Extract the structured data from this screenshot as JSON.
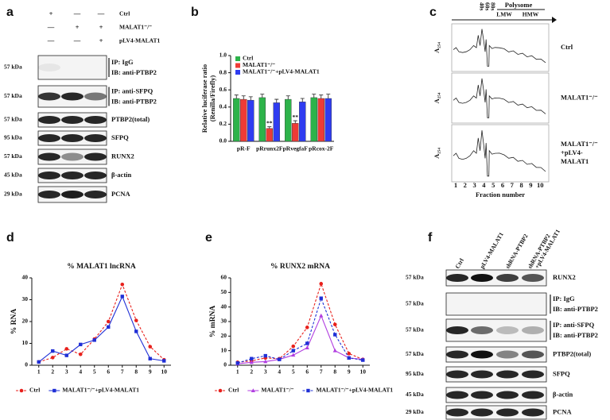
{
  "panel_a": {
    "label": "a",
    "conditions": {
      "names": [
        "Ctrl",
        "MALAT1⁻/⁻",
        "pLV4-MALAT1"
      ],
      "signs": [
        [
          "+",
          "—",
          "—"
        ],
        [
          "—",
          "+",
          "+"
        ],
        [
          "—",
          "—",
          "+"
        ]
      ]
    },
    "blots": [
      {
        "kda": "57 kDa",
        "lines": [
          "IP: IgG",
          "IB: anti-PTBP2"
        ]
      },
      {
        "kda": "57 kDa",
        "lines": [
          "IP: anti-SFPQ",
          "IB: anti-PTBP2"
        ]
      },
      {
        "kda": "57 kDa",
        "lines": [
          "PTBP2(total)"
        ]
      },
      {
        "kda": "95 kDa",
        "lines": [
          "SFPQ"
        ]
      },
      {
        "kda": "57 kDa",
        "lines": [
          "RUNX2"
        ]
      },
      {
        "kda": "45 kDa",
        "lines": [
          "β-actin"
        ]
      },
      {
        "kda": "29 kDa",
        "lines": [
          "PCNA"
        ]
      }
    ]
  },
  "panel_c": {
    "label": "c",
    "header": "Polysome",
    "lmw": "LMW",
    "hmw": "HMW",
    "peaks": [
      "40s",
      "60s",
      "80s"
    ],
    "ylabel": "A₂₅₄",
    "conditions": [
      [
        "Ctrl"
      ],
      [
        "MALAT1⁻/⁻"
      ],
      [
        "MALAT1⁻/⁻",
        "+pLV4-",
        "MALAT1"
      ]
    ],
    "xticks": [
      1,
      2,
      3,
      4,
      5,
      6,
      7,
      8,
      9,
      10
    ],
    "xlabel": "Fraction number"
  },
  "panel_f": {
    "label": "f",
    "columns": [
      [
        "Ctrl"
      ],
      [
        "pLV4-MALAT1"
      ],
      [
        "shRNA-PTBP2"
      ],
      [
        "shRNA-PTBP2",
        "+pLV4-MALAT1"
      ]
    ],
    "blots": [
      {
        "kda": "57 kDa",
        "lines": [
          "RUNX2"
        ]
      },
      {
        "kda": "57 kDa",
        "lines": [
          "IP: IgG",
          "IB: anti-PTBP2"
        ]
      },
      {
        "kda": "57 kDa",
        "lines": [
          "IP: anti-SFPQ",
          "IB: anti-PTBP2"
        ]
      },
      {
        "kda": "57 kDa",
        "lines": [
          "PTBP2(total)"
        ]
      },
      {
        "kda": "95 kDa",
        "lines": [
          "SFPQ"
        ]
      },
      {
        "kda": "45 kDa",
        "lines": [
          "β-actin"
        ]
      },
      {
        "kda": "29 kDa",
        "lines": [
          "PCNA"
        ]
      }
    ]
  },
  "chart_data": [
    {
      "type": "bar",
      "panel": "b",
      "ylabel": [
        "Relative luciferase ratio",
        "(Renilla/Firefly)"
      ],
      "categories": [
        "pR-F",
        "pRrunx2F",
        "pRvegfaF",
        "pRcox-2F"
      ],
      "series": [
        {
          "name": "Ctrl",
          "color": "#2db34a",
          "values": [
            0.5,
            0.51,
            0.49,
            0.51
          ],
          "errors": [
            0.04,
            0.04,
            0.04,
            0.04
          ]
        },
        {
          "name": "MALAT1⁻/⁻",
          "color": "#ee3b36",
          "values": [
            0.49,
            0.15,
            0.21,
            0.5
          ],
          "errors": [
            0.04,
            0.02,
            0.03,
            0.04
          ],
          "significance": [
            null,
            "**",
            "**",
            null
          ]
        },
        {
          "name": "MALAT1⁻/⁻+pLV4-MALAT1",
          "color": "#2f3cf0",
          "values": [
            0.48,
            0.45,
            0.46,
            0.5
          ],
          "errors": [
            0.04,
            0.04,
            0.04,
            0.05
          ]
        }
      ],
      "ylim": [
        0,
        1.0
      ],
      "yticks": [
        {
          "value": 0,
          "label": "0.0"
        },
        0.2,
        0.4,
        0.6,
        0.8,
        {
          "value": 1.0,
          "label": "1.0"
        }
      ],
      "legend": "top-left"
    },
    {
      "type": "line",
      "panel": "d",
      "title": "% MALAT1 lncRNA",
      "ylabel": "% RNA",
      "x": [
        1,
        2,
        3,
        4,
        5,
        6,
        7,
        8,
        9,
        10
      ],
      "xlim": [
        0.5,
        10.5
      ],
      "xticks": [
        1,
        2,
        3,
        4,
        5,
        6,
        7,
        8,
        9,
        10
      ],
      "ylim": [
        0,
        40
      ],
      "yticks": [
        0,
        10,
        20,
        30,
        40
      ],
      "legend": "bottom",
      "series": [
        {
          "name": "Ctrl",
          "color": "#e8201c",
          "dash": true,
          "marker": "circle",
          "values": [
            1.5,
            3.5,
            7.5,
            5,
            12,
            20,
            37,
            20.5,
            8.5,
            2.5
          ]
        },
        {
          "name": "MALAT1⁻/⁻+pLV4-MALAT1",
          "color": "#1f2fd6",
          "dash": false,
          "marker": "square",
          "values": [
            1.5,
            6.5,
            4.5,
            9.5,
            11.5,
            17.5,
            31.5,
            15.5,
            3,
            2
          ]
        }
      ]
    },
    {
      "type": "line",
      "panel": "e",
      "title": "% RUNX2 mRNA",
      "ylabel": "% mRNA",
      "x": [
        1,
        2,
        3,
        4,
        5,
        6,
        7,
        8,
        9,
        10
      ],
      "xlim": [
        0.5,
        10.5
      ],
      "xticks": [
        1,
        2,
        3,
        4,
        5,
        6,
        7,
        8,
        9,
        10
      ],
      "ylim": [
        0,
        60
      ],
      "yticks": [
        0,
        10,
        20,
        30,
        40,
        50,
        60
      ],
      "legend": "bottom",
      "series": [
        {
          "name": "Ctrl",
          "color": "#e8201c",
          "dash": true,
          "marker": "circle",
          "values": [
            2,
            3,
            5,
            4.5,
            13,
            26,
            56,
            28,
            8,
            4
          ]
        },
        {
          "name": "MALAT1⁻/⁻",
          "color": "#b13ee0",
          "dash": false,
          "marker": "triangle",
          "values": [
            1,
            2,
            2.5,
            4,
            7,
            12,
            34,
            10,
            5,
            4
          ]
        },
        {
          "name": "MALAT1⁻/⁻+pLV4-MALAT1",
          "color": "#1f2fd6",
          "dash": true,
          "marker": "square",
          "values": [
            1.5,
            4.5,
            6.5,
            4,
            10,
            15,
            46,
            21,
            5,
            3.5
          ]
        }
      ]
    }
  ]
}
